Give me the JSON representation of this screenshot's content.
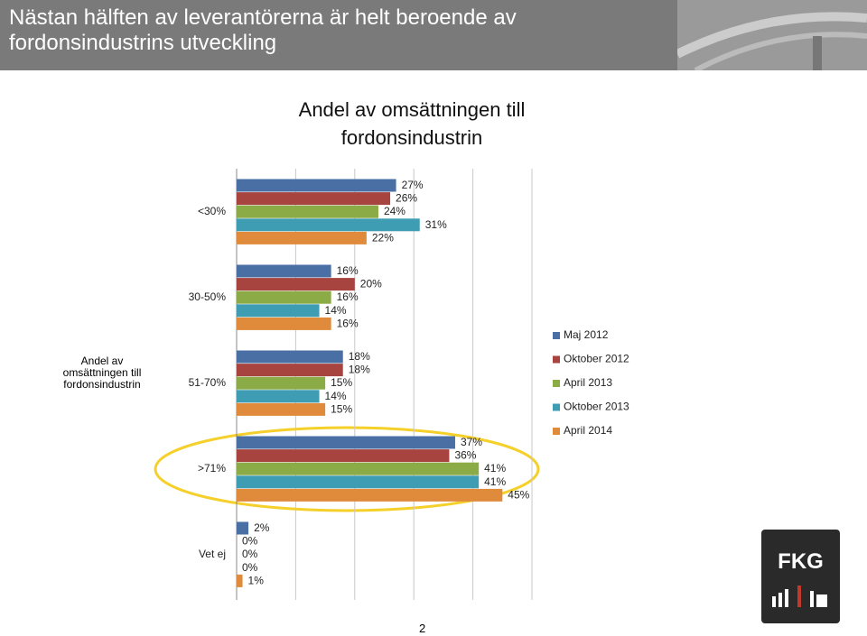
{
  "header": {
    "title": "Nästan hälften av leverantörerna är helt beroende av fordonsindustrins utveckling"
  },
  "side_label": "Andel av omsättningen till fordonsindustrin",
  "page_number": "2",
  "logo": "FKG",
  "chart_data": {
    "type": "hbar",
    "title": "Andel av omsättningen till fordonsindustrin",
    "categories": [
      "<30%",
      "30-50%",
      "51-70%",
      ">71%",
      "Vet ej"
    ],
    "series": [
      {
        "name": "Maj 2012",
        "color": "#4a6fa5",
        "values": [
          27,
          16,
          18,
          37,
          2
        ],
        "value_labels": [
          "27%",
          "16%",
          "18%",
          "37%",
          "2%"
        ]
      },
      {
        "name": "Oktober 2012",
        "color": "#a84440",
        "values": [
          26,
          20,
          18,
          36,
          0
        ],
        "value_labels": [
          "26%",
          "20%",
          "18%",
          "36%",
          "0%"
        ]
      },
      {
        "name": "April 2013",
        "color": "#8bab46",
        "values": [
          24,
          16,
          15,
          41,
          0
        ],
        "value_labels": [
          "24%",
          "16%",
          "15%",
          "41%",
          "0%"
        ]
      },
      {
        "name": "Oktober 2013",
        "color": "#3e9db3",
        "values": [
          31,
          14,
          14,
          41,
          0
        ],
        "value_labels": [
          "31%",
          "14%",
          "14%",
          "41%",
          "0%"
        ]
      },
      {
        "name": "April 2014",
        "color": "#e08a3c",
        "values": [
          22,
          16,
          15,
          45,
          1
        ],
        "value_labels": [
          "22%",
          "16%",
          "15%",
          "45%",
          "1%"
        ]
      }
    ],
    "xlim": [
      0,
      50
    ],
    "xticks": [
      0,
      10,
      20,
      30,
      40,
      50
    ],
    "grid": true,
    "legend": "right"
  }
}
